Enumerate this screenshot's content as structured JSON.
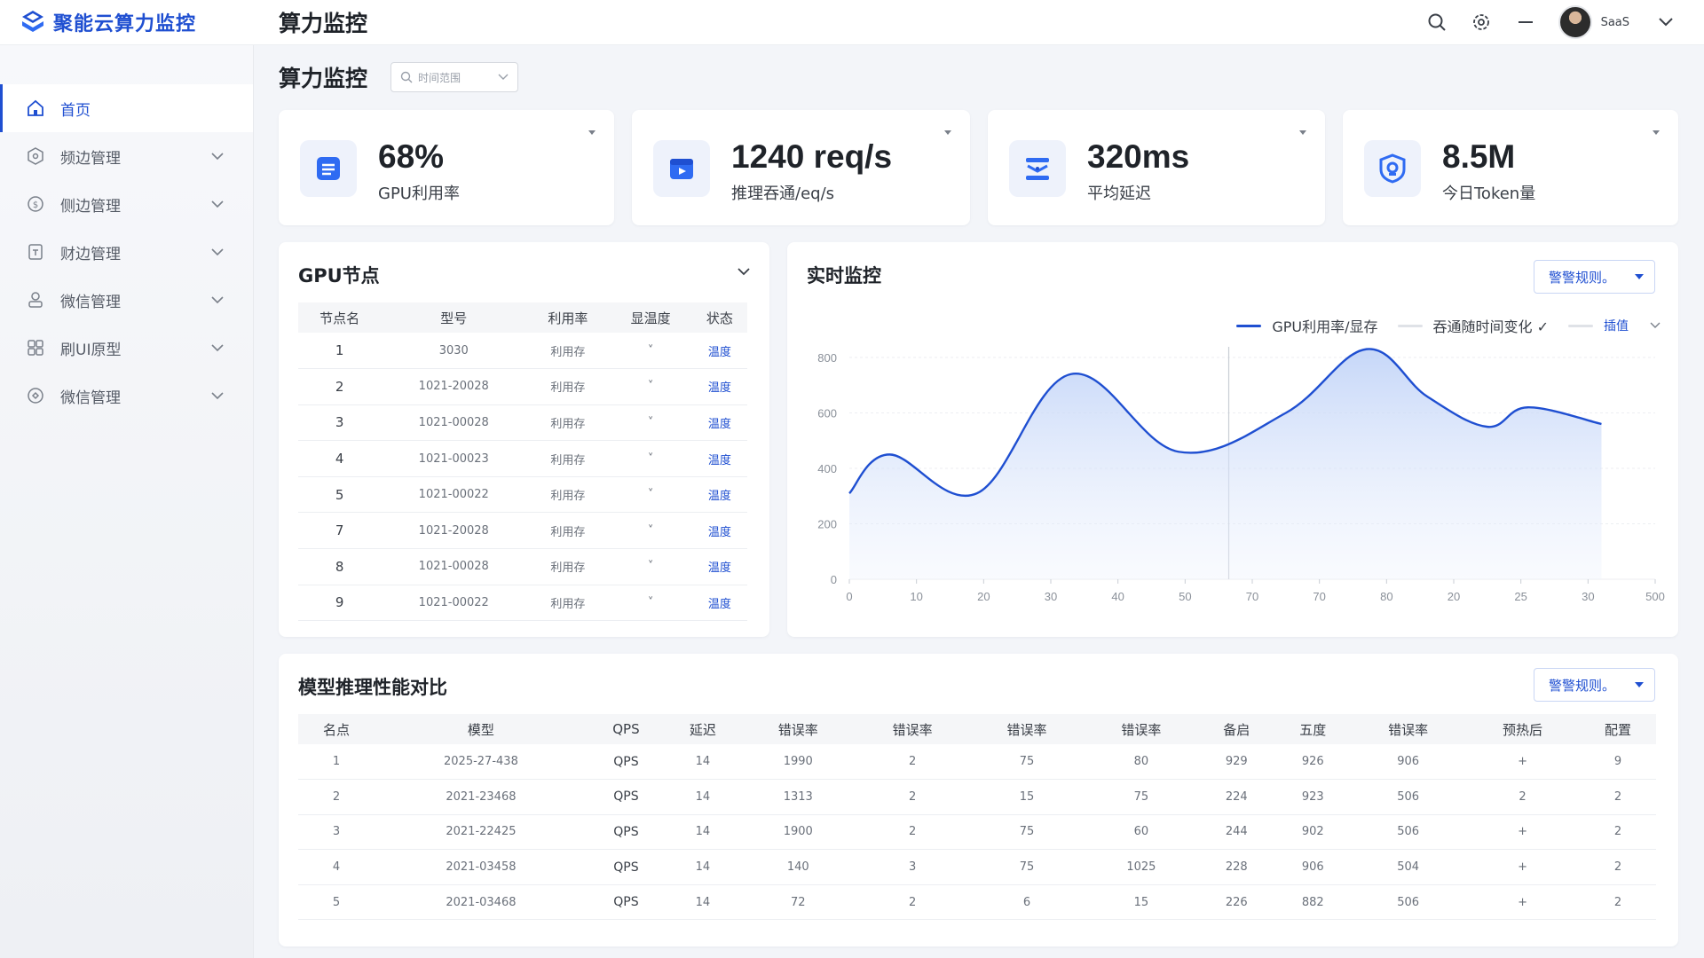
{
  "app": {
    "brand": "聚能云算力监控",
    "header_title": "算力监控",
    "user_name": "SaaS"
  },
  "sidebar": {
    "items": [
      {
        "label": "首页",
        "icon": "home-icon",
        "active": true
      },
      {
        "label": "频边管理",
        "icon": "hexagon-icon",
        "active": false
      },
      {
        "label": "侧边管理",
        "icon": "shield-icon",
        "active": false
      },
      {
        "label": "财边管理",
        "icon": "document-icon",
        "active": false
      },
      {
        "label": "微信管理",
        "icon": "user-group-icon",
        "active": false
      },
      {
        "label": "刷UI原型",
        "icon": "grid-icon",
        "active": false
      },
      {
        "label": "微信管理",
        "icon": "settings-icon",
        "active": false
      }
    ]
  },
  "page": {
    "title": "算力监控",
    "time_placeholder": "时间范围"
  },
  "stats": [
    {
      "value": "68%",
      "label": "GPU利用率",
      "icon": "gpu-doc-icon"
    },
    {
      "value": "1240 req/s",
      "label": "推理吞通/eq/s",
      "icon": "inference-box-icon"
    },
    {
      "value": "320ms",
      "label": "平均延迟",
      "icon": "latency-layers-icon"
    },
    {
      "value": "8.5M",
      "label": "今日Token量",
      "icon": "token-shield-icon"
    }
  ],
  "gpu_panel": {
    "title": "GPU节点",
    "columns": [
      "节点名",
      "型号",
      "利用率",
      "显温度",
      "状态"
    ],
    "rows": [
      {
        "name": "1",
        "model": "3030",
        "util": "利用存",
        "temp": "˅",
        "status": "温度"
      },
      {
        "name": "2",
        "model": "1021-20028",
        "util": "利用存",
        "temp": "˅",
        "status": "温度"
      },
      {
        "name": "3",
        "model": "1021-00028",
        "util": "利用存",
        "temp": "˅",
        "status": "温度"
      },
      {
        "name": "4",
        "model": "1021-00023",
        "util": "利用存",
        "temp": "˅",
        "status": "温度"
      },
      {
        "name": "5",
        "model": "1021-00022",
        "util": "利用存",
        "temp": "˅",
        "status": "温度"
      },
      {
        "name": "7",
        "model": "1021-20028",
        "util": "利用存",
        "temp": "˅",
        "status": "温度"
      },
      {
        "name": "8",
        "model": "1021-00028",
        "util": "利用存",
        "temp": "˅",
        "status": "温度"
      },
      {
        "name": "9",
        "model": "1021-00022",
        "util": "利用存",
        "temp": "˅",
        "status": "温度"
      }
    ]
  },
  "realtime_panel": {
    "title": "实时监控",
    "rule_button": "警警规则。",
    "legend": [
      {
        "name": "GPU利用率/显存",
        "color": "#1f4fd1"
      },
      {
        "name": "吞通随时间变化 ✓",
        "color": "#dfe2e7"
      },
      {
        "name": "插值",
        "color": "#dfe2e7"
      }
    ]
  },
  "chart_data": {
    "type": "area",
    "title": "",
    "xlabel": "",
    "ylabel": "",
    "x_tick_labels": [
      "0",
      "10",
      "20",
      "30",
      "40",
      "50",
      "70",
      "70",
      "80",
      "20",
      "25",
      "30",
      "500"
    ],
    "y_ticks": [
      0,
      200,
      400,
      600,
      800
    ],
    "ylim": [
      0,
      800
    ],
    "grid": true,
    "legend_position": "top-right",
    "series": [
      {
        "name": "GPU利用率/显存",
        "color": "#1f4fd1",
        "points": [
          {
            "x": 0,
            "y": 310
          },
          {
            "x": 0.6,
            "y": 450
          },
          {
            "x": 1.9,
            "y": 310
          },
          {
            "x": 3.3,
            "y": 740
          },
          {
            "x": 4.9,
            "y": 460
          },
          {
            "x": 6.5,
            "y": 600
          },
          {
            "x": 7.7,
            "y": 830
          },
          {
            "x": 8.6,
            "y": 660
          },
          {
            "x": 9.5,
            "y": 550
          },
          {
            "x": 10.1,
            "y": 620
          },
          {
            "x": 11.2,
            "y": 560
          }
        ]
      }
    ],
    "vertical_marker_x": 5.65
  },
  "perf_panel": {
    "title": "模型推理性能对比",
    "rule_button": "警警规则。",
    "columns": [
      "名点",
      "模型",
      "QPS",
      "延迟",
      "错误率",
      "错误率",
      "错误率",
      "错误率",
      "备启",
      "五度",
      "错误率",
      "预热后",
      "配置"
    ],
    "rows": [
      [
        "1",
        "2025-27-438",
        "QPS",
        "14",
        "1990",
        "2",
        "75",
        "80",
        "929",
        "926",
        "906",
        "+",
        "9"
      ],
      [
        "2",
        "2021-23468",
        "QPS",
        "14",
        "1313",
        "2",
        "15",
        "75",
        "224",
        "923",
        "506",
        "2",
        "2"
      ],
      [
        "3",
        "2021-22425",
        "QPS",
        "14",
        "1900",
        "2",
        "75",
        "60",
        "244",
        "902",
        "506",
        "+",
        "2"
      ],
      [
        "4",
        "2021-03458",
        "QPS",
        "14",
        "140",
        "3",
        "75",
        "1025",
        "228",
        "906",
        "504",
        "+",
        "2"
      ],
      [
        "5",
        "2021-03468",
        "QPS",
        "14",
        "72",
        "2",
        "6",
        "15",
        "226",
        "882",
        "506",
        "+",
        "2"
      ]
    ]
  }
}
